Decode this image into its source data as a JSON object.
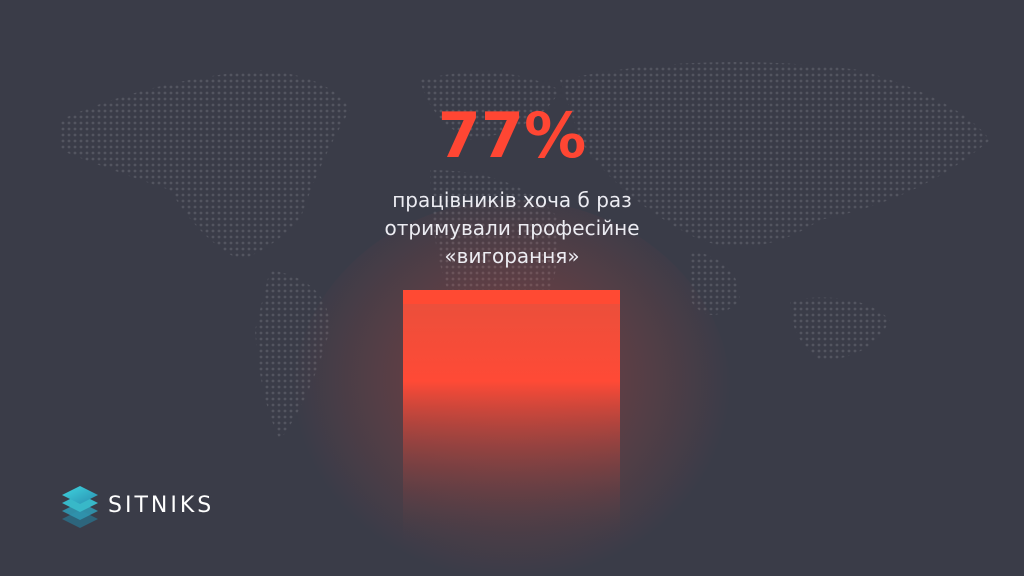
{
  "stat": {
    "value": "77%",
    "caption": [
      "працівників хоча б раз",
      "отримували професійне",
      "«вигорання»"
    ]
  },
  "logo": {
    "name": "SITNIKS"
  }
}
